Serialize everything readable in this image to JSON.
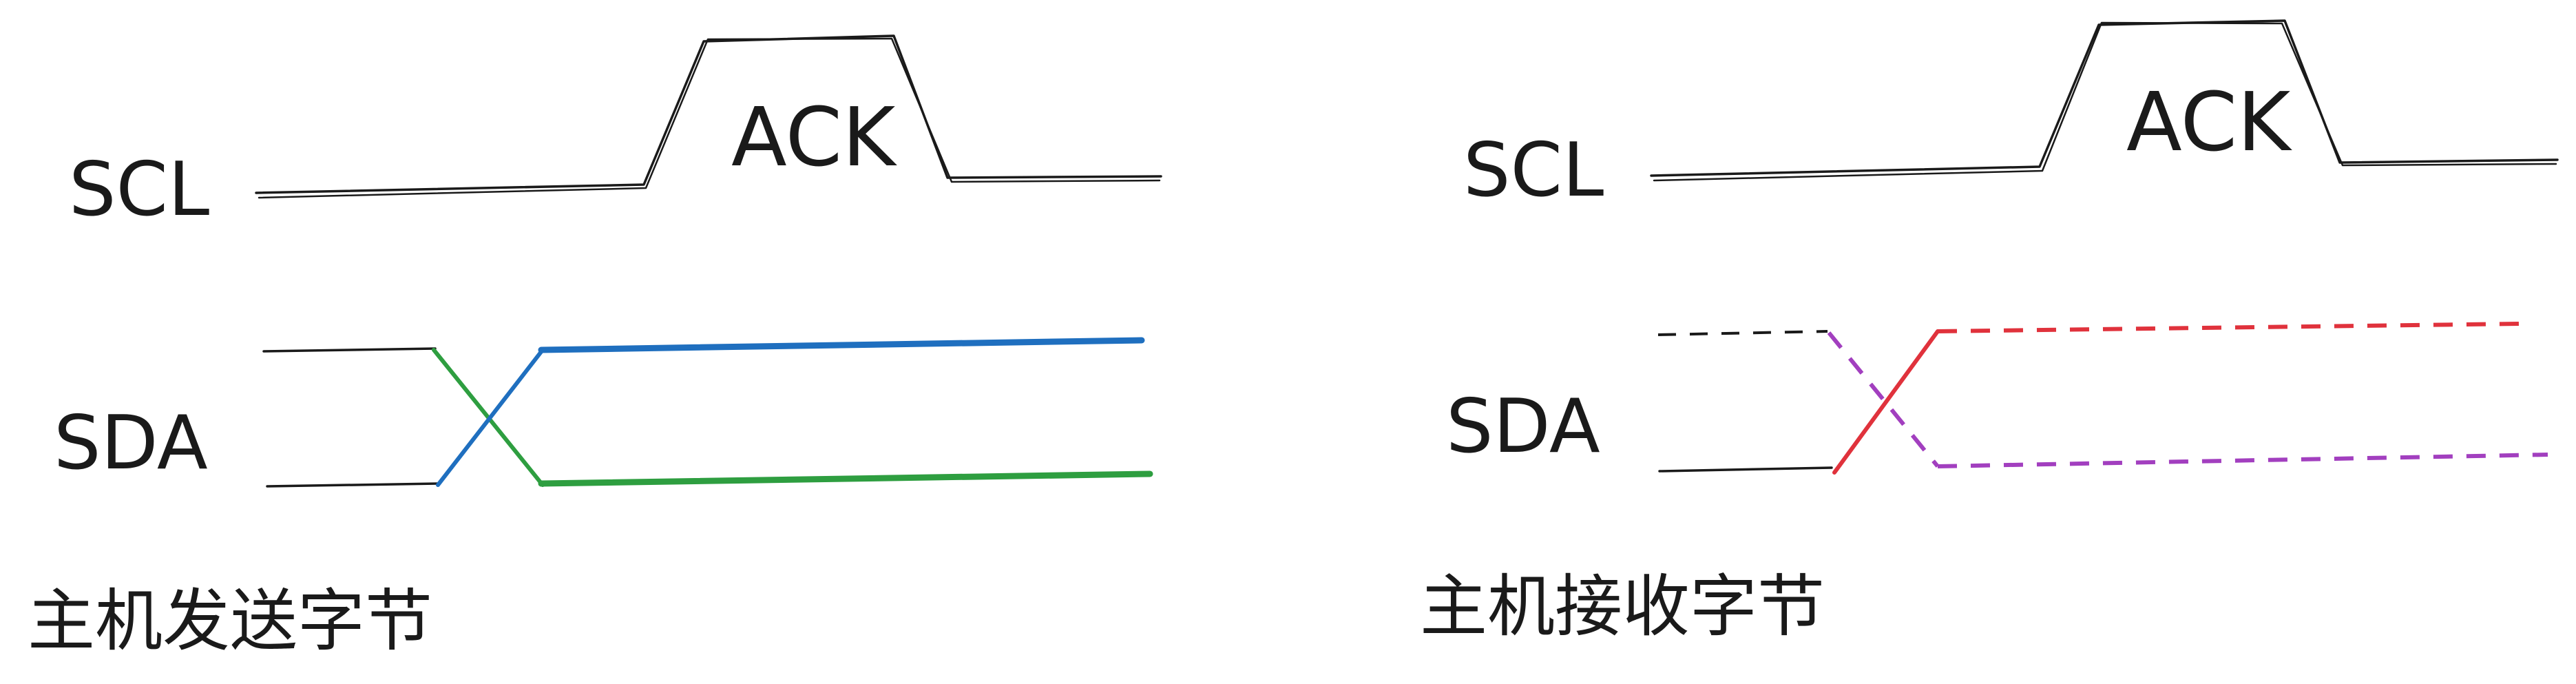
{
  "colors": {
    "ink": "#1a1a1a",
    "blue": "#1f6fbf",
    "green": "#2e9e40",
    "red": "#e0323c",
    "purple": "#a23fbf"
  },
  "left_panel": {
    "scl_label": "SCL",
    "sda_label": "SDA",
    "ack_label": "ACK",
    "caption": "主机发送字节"
  },
  "right_panel": {
    "scl_label": "SCL",
    "sda_label": "SDA",
    "ack_label": "ACK",
    "caption": "主机接收字节"
  }
}
